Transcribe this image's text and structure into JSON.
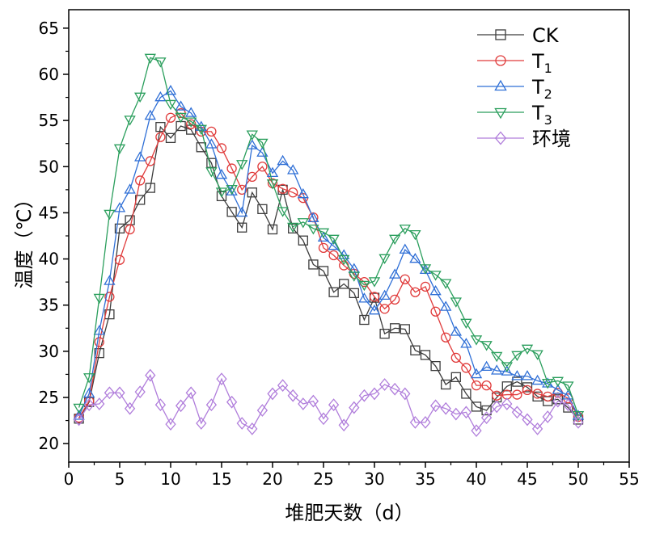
{
  "chart_data": {
    "type": "line",
    "xlabel": "堆肥天数（d）",
    "ylabel": "温度（℃）",
    "xlim": [
      0,
      55
    ],
    "ylim": [
      18,
      67
    ],
    "xticks": [
      0,
      5,
      10,
      15,
      20,
      25,
      30,
      35,
      40,
      45,
      50,
      55
    ],
    "yticks": [
      20,
      25,
      30,
      35,
      40,
      45,
      50,
      55,
      60,
      65
    ],
    "grid": false,
    "legend_position": "top-right",
    "x": [
      1,
      2,
      3,
      4,
      5,
      6,
      7,
      8,
      9,
      10,
      11,
      12,
      13,
      14,
      15,
      16,
      17,
      18,
      19,
      20,
      21,
      22,
      23,
      24,
      25,
      26,
      27,
      28,
      29,
      30,
      31,
      32,
      33,
      34,
      35,
      36,
      37,
      38,
      39,
      40,
      41,
      42,
      43,
      44,
      45,
      46,
      47,
      48,
      49,
      50
    ],
    "series": [
      {
        "name": "CK",
        "legend_base": "CK",
        "legend_sub": "",
        "color": "#3c3c3c",
        "marker": "square",
        "values": [
          22.7,
          24.5,
          29.8,
          34.0,
          43.3,
          44.2,
          46.4,
          47.7,
          54.3,
          53.1,
          54.4,
          54.0,
          52.1,
          50.4,
          46.8,
          45.1,
          43.4,
          47.2,
          45.4,
          43.2,
          47.5,
          43.3,
          42.0,
          39.4,
          38.7,
          36.4,
          37.3,
          36.3,
          33.4,
          35.8,
          31.9,
          32.5,
          32.4,
          30.1,
          29.6,
          28.4,
          26.4,
          27.2,
          25.4,
          24.0,
          23.6,
          25.0,
          26.2,
          26.7,
          26.1,
          25.1,
          24.6,
          24.8,
          23.9,
          22.6
        ]
      },
      {
        "name": "T1",
        "legend_base": "T",
        "legend_sub": "1",
        "color": "#e03b3b",
        "marker": "circle",
        "values": [
          22.8,
          24.6,
          31.0,
          35.9,
          39.9,
          43.2,
          48.5,
          50.6,
          53.2,
          55.3,
          55.8,
          54.6,
          53.8,
          53.8,
          52.0,
          49.8,
          47.5,
          48.9,
          50.0,
          48.2,
          47.6,
          47.2,
          46.6,
          44.5,
          41.2,
          40.4,
          39.3,
          38.4,
          37.5,
          35.9,
          34.6,
          35.6,
          37.8,
          36.4,
          37.0,
          34.3,
          31.5,
          29.3,
          28.2,
          26.3,
          26.3,
          25.2,
          25.3,
          25.3,
          25.8,
          25.4,
          25.1,
          25.5,
          24.9,
          22.9
        ]
      },
      {
        "name": "T2",
        "legend_base": "T",
        "legend_sub": "2",
        "color": "#2f6fd6",
        "marker": "triangle-up",
        "values": [
          23.0,
          25.4,
          32.2,
          37.6,
          45.5,
          47.5,
          51.0,
          55.5,
          57.5,
          58.2,
          56.5,
          55.8,
          54.3,
          52.4,
          49.1,
          47.3,
          45.0,
          52.3,
          51.5,
          49.3,
          50.6,
          49.6,
          47.0,
          44.4,
          42.3,
          41.4,
          40.4,
          38.9,
          35.7,
          34.4,
          36.0,
          38.3,
          41.0,
          40.0,
          38.8,
          36.5,
          34.8,
          32.1,
          30.8,
          27.5,
          28.3,
          27.9,
          27.8,
          27.3,
          27.3,
          26.8,
          26.5,
          25.8,
          25.2,
          23.0
        ]
      },
      {
        "name": "T3",
        "legend_base": "T",
        "legend_sub": "3",
        "color": "#2a9e5c",
        "marker": "triangle-down",
        "values": [
          23.9,
          27.2,
          35.8,
          44.9,
          52.0,
          55.1,
          57.6,
          61.8,
          61.4,
          56.8,
          55.4,
          54.9,
          54.1,
          49.5,
          47.3,
          47.6,
          50.3,
          53.5,
          52.6,
          48.2,
          45.2,
          43.5,
          44.0,
          43.3,
          42.9,
          42.2,
          40.0,
          38.2,
          37.2,
          37.6,
          40.1,
          42.2,
          43.3,
          42.7,
          39.0,
          38.3,
          37.4,
          35.4,
          33.1,
          31.3,
          30.7,
          29.5,
          28.4,
          29.6,
          30.3,
          29.7,
          26.6,
          26.8,
          26.3,
          23.1
        ]
      },
      {
        "name": "环境",
        "legend_base": "环境",
        "legend_sub": "",
        "color": "#b07ddb",
        "marker": "diamond",
        "values": [
          22.6,
          24.2,
          24.3,
          25.5,
          25.5,
          23.8,
          25.6,
          27.4,
          24.2,
          22.1,
          24.1,
          25.5,
          22.2,
          24.2,
          27.0,
          24.5,
          22.2,
          21.6,
          23.6,
          25.4,
          26.3,
          25.2,
          24.3,
          24.6,
          22.7,
          24.2,
          22.0,
          23.9,
          25.2,
          25.4,
          26.4,
          25.9,
          25.4,
          22.3,
          22.3,
          24.1,
          23.8,
          23.2,
          23.4,
          21.4,
          22.8,
          24.0,
          24.3,
          23.4,
          22.6,
          21.6,
          22.9,
          24.6,
          24.2,
          22.3
        ]
      }
    ]
  }
}
